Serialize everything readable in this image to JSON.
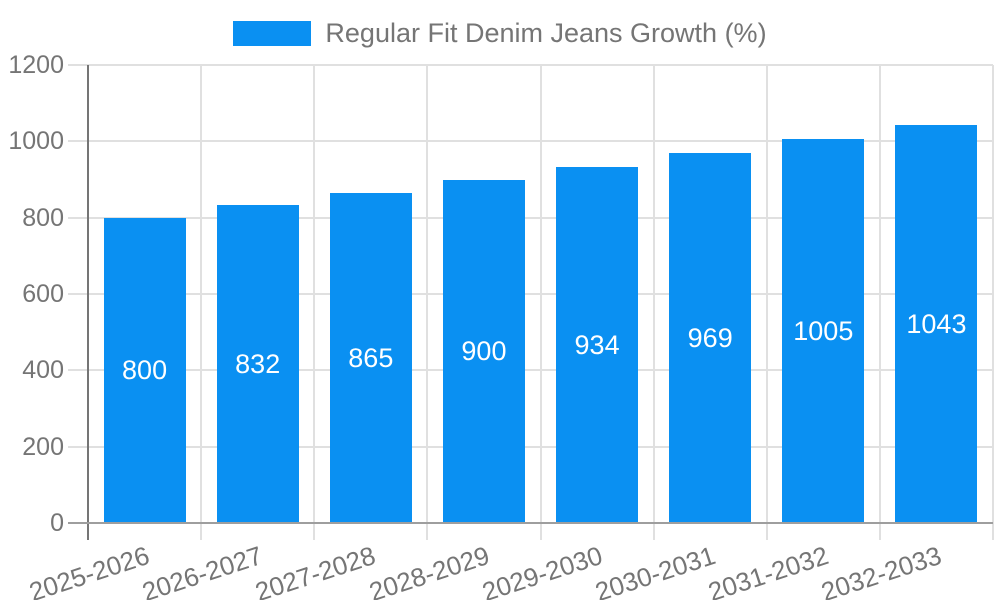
{
  "chart_data": {
    "type": "bar",
    "title": "Regular Fit Denim Jeans Growth (%)",
    "legend_position": "top-center",
    "categories": [
      "2025-2026",
      "2026-2027",
      "2027-2028",
      "2028-2029",
      "2029-2030",
      "2030-2031",
      "2031-2032",
      "2032-2033"
    ],
    "series": [
      {
        "name": "Regular Fit Denim Jeans Growth (%)",
        "values": [
          800,
          832,
          865,
          900,
          934,
          969,
          1005,
          1043
        ]
      }
    ],
    "value_labels": [
      "800",
      "832",
      "865",
      "900",
      "934",
      "969",
      "1005",
      "1043"
    ],
    "xlabel": "",
    "ylabel": "",
    "ylim": [
      0,
      1200
    ],
    "yticks": [
      0,
      200,
      400,
      600,
      800,
      1000,
      1200
    ],
    "grid": true,
    "colors": {
      "bar": "#0a90f2",
      "value_label_text": "#ffffff",
      "axis_text": "#757575",
      "gridline": "#e0e0e0",
      "baseline": "#9e9e9e",
      "y_axis_line": "#757575"
    }
  }
}
